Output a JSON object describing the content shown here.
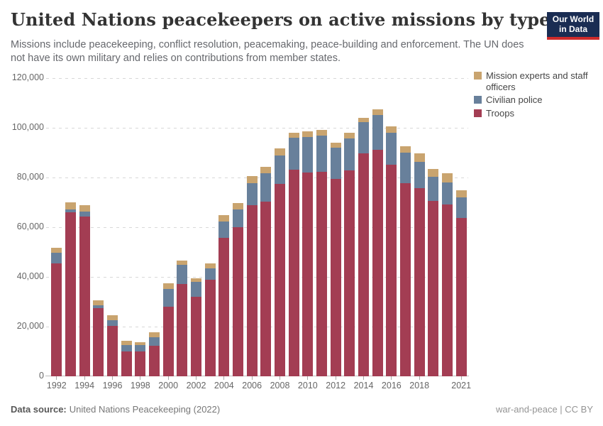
{
  "header": {
    "title": "United Nations peacekeepers on active missions by type",
    "subtitle": "Missions include peacekeeping, conflict resolution, peacemaking, peace-building and enforcement. The UN does not have its own military and relies on contributions from member states.",
    "logo": {
      "line1": "Our World",
      "line2": "in Data"
    }
  },
  "colors": {
    "troops": "#A33D53",
    "civilian_police": "#68809B",
    "mission_experts": "#C9A46F",
    "logo_bg": "#1A2D53",
    "logo_stripe": "#CE2B2B",
    "grid": "#D8D8D8",
    "axis_text": "#666666"
  },
  "legend": {
    "items": [
      {
        "label": "Mission experts and staff officers",
        "color": "#C9A46F"
      },
      {
        "label": "Civilian police",
        "color": "#68809B"
      },
      {
        "label": "Troops",
        "color": "#A33D53"
      }
    ]
  },
  "chart_data": {
    "type": "bar",
    "stacked": true,
    "title": "United Nations peacekeepers on active missions by type",
    "xlabel": "",
    "ylabel": "",
    "ylim": [
      0,
      120000
    ],
    "yticks": [
      0,
      20000,
      40000,
      60000,
      80000,
      100000,
      120000
    ],
    "ytick_labels": [
      "0",
      "20,000",
      "40,000",
      "60,000",
      "80,000",
      "100,000",
      "120,000"
    ],
    "grid": "horizontal-dashed",
    "legend_position": "right",
    "categories": [
      1992,
      1993,
      1994,
      1995,
      1996,
      1997,
      1998,
      1999,
      2000,
      2001,
      2002,
      2003,
      2004,
      2005,
      2006,
      2007,
      2008,
      2009,
      2010,
      2011,
      2012,
      2013,
      2014,
      2015,
      2016,
      2017,
      2018,
      2019,
      2020,
      2021
    ],
    "xtick_labels": [
      "1992",
      "1994",
      "1996",
      "1998",
      "2000",
      "2002",
      "2004",
      "2006",
      "2008",
      "2010",
      "2012",
      "2014",
      "2016",
      "2018",
      "2021"
    ],
    "series": [
      {
        "name": "Troops",
        "color": "#A33D53",
        "values": [
          45400,
          66000,
          64300,
          27400,
          20200,
          10000,
          10000,
          12200,
          28100,
          37100,
          31900,
          38800,
          55700,
          60000,
          68900,
          70300,
          77400,
          83100,
          81900,
          82400,
          79500,
          83000,
          89700,
          91200,
          85200,
          77800,
          75700,
          70500,
          69200,
          63800
        ]
      },
      {
        "name": "Civilian police",
        "color": "#68809B",
        "values": [
          4300,
          1200,
          2100,
          1300,
          2500,
          2700,
          2600,
          3500,
          7100,
          7800,
          6200,
          4500,
          6700,
          7100,
          8700,
          11300,
          11500,
          12800,
          14300,
          14500,
          12400,
          12700,
          12500,
          14000,
          12900,
          12200,
          10500,
          9800,
          8900,
          8100
        ]
      },
      {
        "name": "Mission experts and staff officers",
        "color": "#C9A46F",
        "values": [
          1900,
          2800,
          2600,
          2000,
          1900,
          1600,
          1000,
          2100,
          2200,
          1800,
          1400,
          2100,
          2400,
          2700,
          2900,
          2700,
          2800,
          2200,
          2400,
          2300,
          2200,
          2400,
          1800,
          2200,
          2400,
          2700,
          3600,
          3000,
          3600,
          2900
        ]
      }
    ]
  },
  "footer": {
    "source_label": "Data source:",
    "source_value": "United Nations Peacekeeping (2022)",
    "license": "war-and-peace | CC BY"
  }
}
